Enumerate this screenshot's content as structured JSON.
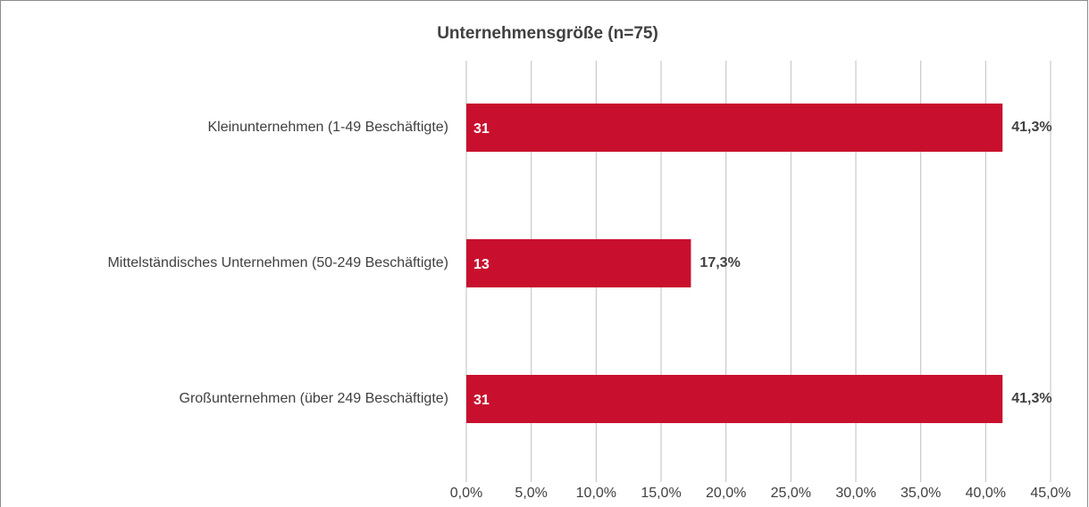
{
  "chart_data": {
    "type": "barh",
    "title": "Unternehmensgröße (n=75)",
    "categories": [
      "Kleinunternehmen (1-49 Beschäftigte)",
      "Mittelständisches Unternehmen (50-249 Beschäftigte)",
      "Großunternehmen (über 249 Beschäftigte)"
    ],
    "values": [
      41.3,
      17.3,
      41.3
    ],
    "value_labels": [
      "41,3%",
      "17,3%",
      "41,3%"
    ],
    "counts": [
      31,
      13,
      31
    ],
    "color": "#c8102e",
    "xlim": [
      0,
      45
    ],
    "xticks": [
      {
        "value": 0,
        "label": "0,0%"
      },
      {
        "value": 5,
        "label": "5,0%"
      },
      {
        "value": 10,
        "label": "10,0%"
      },
      {
        "value": 15,
        "label": "15,0%"
      },
      {
        "value": 20,
        "label": "20,0%"
      },
      {
        "value": 25,
        "label": "25,0%"
      },
      {
        "value": 30,
        "label": "30,0%"
      },
      {
        "value": 35,
        "label": "35,0%"
      },
      {
        "value": 40,
        "label": "40,0%"
      },
      {
        "value": 45,
        "label": "45,0%"
      }
    ],
    "grid": true
  }
}
